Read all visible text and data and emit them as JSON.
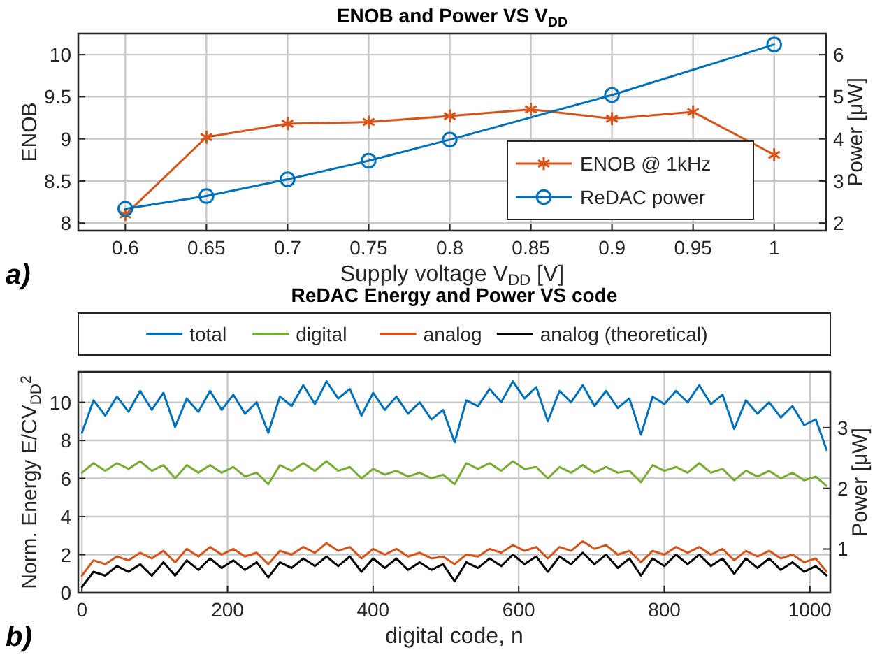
{
  "chart_data": [
    {
      "type": "line",
      "title": "ENOB and Power VS V$_{DD}$",
      "xlabel": "Supply voltage V$_{DD}$ [V]",
      "ylabel": "ENOB",
      "y2label": "Power [μW]",
      "xlim": [
        0.571,
        1.032
      ],
      "xticks": [
        0.6,
        0.65,
        0.7,
        0.75,
        0.8,
        0.85,
        0.9,
        0.95,
        1
      ],
      "ylim": [
        7.91,
        10.25
      ],
      "yticks": [
        8,
        8.5,
        9,
        9.5,
        10
      ],
      "y2lim": [
        1.82,
        6.5
      ],
      "y2ticks": [
        2,
        3,
        4,
        5,
        6
      ],
      "grid": true,
      "legend": "bottom right",
      "annotations": [
        "a)"
      ],
      "series": [
        {
          "name": "ENOB @ 1kHz",
          "color": "#d95319",
          "marker": "cross",
          "x": [
            0.6,
            0.65,
            0.7,
            0.75,
            0.8,
            0.85,
            0.9,
            0.95,
            1
          ],
          "values": [
            8.1,
            9.02,
            9.18,
            9.2,
            9.27,
            9.35,
            9.24,
            9.32,
            8.81
          ]
        },
        {
          "name": "ReDAC power",
          "color": "#0072bd",
          "marker": "circle",
          "axis": "y2",
          "x": [
            0.6,
            0.65,
            0.7,
            0.75,
            0.8,
            0.9,
            1
          ],
          "values": [
            2.34,
            2.64,
            3.04,
            3.48,
            3.98,
            5.04,
            6.24
          ]
        }
      ]
    },
    {
      "type": "line",
      "title": "ReDAC Energy and Power VS code",
      "xlabel": "digital code, n",
      "ylabel": "Norm. Energy E/CV$_{DD}$$^{2}$",
      "y2label": "Power [μW]",
      "xlim": [
        -5,
        1028
      ],
      "xticks": [
        0,
        200,
        400,
        600,
        800,
        1000
      ],
      "ylim": [
        0,
        11.6
      ],
      "yticks": [
        0,
        2,
        4,
        6,
        8,
        10
      ],
      "y2lim": [
        0.28,
        3.92
      ],
      "y2ticks": [
        1,
        2,
        3
      ],
      "grid": true,
      "legend": "top",
      "annotations": [
        "b)"
      ],
      "x": [
        0,
        16,
        32,
        48,
        64,
        80,
        96,
        112,
        128,
        144,
        160,
        176,
        192,
        208,
        224,
        240,
        256,
        272,
        288,
        304,
        320,
        336,
        352,
        368,
        384,
        400,
        416,
        432,
        448,
        464,
        480,
        496,
        512,
        528,
        544,
        560,
        576,
        592,
        608,
        624,
        640,
        656,
        672,
        688,
        704,
        720,
        736,
        752,
        768,
        784,
        800,
        816,
        832,
        848,
        864,
        880,
        896,
        912,
        928,
        944,
        960,
        976,
        992,
        1008,
        1023
      ],
      "series": [
        {
          "name": "total",
          "color": "#0072bd",
          "values": [
            8.4,
            10.1,
            9.3,
            10.3,
            9.5,
            10.6,
            9.6,
            10.5,
            8.7,
            10.2,
            9.5,
            10.6,
            9.6,
            10.4,
            9.4,
            10.0,
            8.4,
            10.3,
            9.8,
            10.9,
            9.9,
            11.1,
            10.2,
            10.7,
            9.3,
            10.5,
            9.6,
            10.3,
            9.4,
            10.0,
            9.1,
            9.6,
            7.9,
            10.1,
            9.8,
            10.7,
            10.0,
            11.1,
            10.2,
            10.8,
            9.0,
            10.6,
            10.0,
            10.9,
            9.8,
            10.6,
            9.7,
            10.2,
            8.3,
            10.3,
            9.9,
            10.6,
            10.0,
            10.9,
            9.9,
            10.4,
            8.6,
            10.1,
            9.4,
            10.0,
            9.2,
            9.8,
            8.8,
            9.1,
            7.5
          ]
        },
        {
          "name": "digital",
          "color": "#77ac30",
          "values": [
            6.3,
            6.8,
            6.4,
            6.8,
            6.5,
            6.9,
            6.4,
            6.7,
            6.0,
            6.7,
            6.3,
            6.7,
            6.3,
            6.6,
            6.1,
            6.3,
            5.7,
            6.7,
            6.4,
            6.8,
            6.4,
            6.9,
            6.4,
            6.6,
            6.0,
            6.5,
            6.2,
            6.4,
            6.1,
            6.3,
            6.0,
            6.2,
            5.7,
            6.8,
            6.5,
            6.8,
            6.4,
            6.9,
            6.5,
            6.6,
            6.0,
            6.6,
            6.3,
            6.7,
            6.3,
            6.6,
            6.3,
            6.4,
            5.8,
            6.7,
            6.4,
            6.6,
            6.3,
            6.8,
            6.3,
            6.5,
            5.9,
            6.4,
            6.1,
            6.4,
            6.0,
            6.3,
            5.9,
            6.1,
            5.6
          ]
        },
        {
          "name": "analog",
          "color": "#d95319",
          "values": [
            0.9,
            1.7,
            1.5,
            1.9,
            1.7,
            2.1,
            1.8,
            2.2,
            1.6,
            2.3,
            1.9,
            2.4,
            2.0,
            2.3,
            1.9,
            2.1,
            1.5,
            2.2,
            2.0,
            2.4,
            2.1,
            2.6,
            2.2,
            2.4,
            1.8,
            2.3,
            2.0,
            2.3,
            1.9,
            2.1,
            1.8,
            1.9,
            1.5,
            2.0,
            1.9,
            2.3,
            2.1,
            2.5,
            2.2,
            2.4,
            1.8,
            2.4,
            2.2,
            2.7,
            2.3,
            2.5,
            2.0,
            2.2,
            1.6,
            2.2,
            2.0,
            2.4,
            2.1,
            2.4,
            2.0,
            2.3,
            1.7,
            2.2,
            1.9,
            2.2,
            1.8,
            2.0,
            1.6,
            1.8,
            1.1
          ]
        },
        {
          "name": "analog (theoretical)",
          "color": "#000000",
          "values": [
            0.3,
            1.1,
            0.9,
            1.4,
            1.1,
            1.5,
            0.9,
            1.6,
            0.9,
            1.7,
            1.2,
            1.8,
            1.3,
            1.7,
            1.2,
            1.6,
            0.8,
            1.6,
            1.3,
            1.8,
            1.4,
            1.9,
            1.4,
            1.9,
            1.1,
            1.8,
            1.3,
            1.8,
            1.2,
            1.6,
            1.2,
            1.5,
            0.6,
            1.6,
            1.3,
            1.8,
            1.4,
            2.0,
            1.5,
            1.9,
            1.1,
            1.9,
            1.5,
            2.1,
            1.5,
            2.0,
            1.3,
            1.8,
            0.9,
            1.8,
            1.4,
            2.0,
            1.5,
            2.0,
            1.4,
            1.8,
            1.0,
            1.8,
            1.3,
            1.8,
            1.2,
            1.6,
            1.1,
            1.4,
            0.9
          ]
        }
      ]
    }
  ]
}
